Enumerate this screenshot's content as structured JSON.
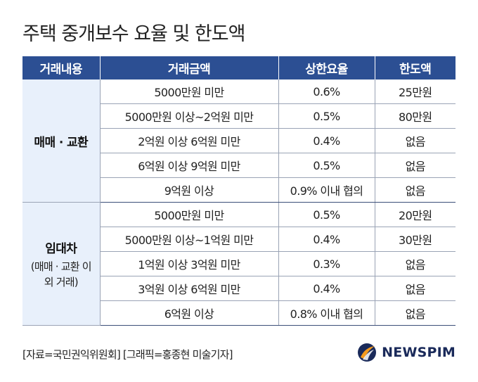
{
  "title": "주택 중개보수 요율 및 한도액",
  "table": {
    "headers": [
      "거래내용",
      "거래금액",
      "상한요율",
      "한도액"
    ],
    "groups": [
      {
        "category": "매매 · 교환",
        "category_sub": "",
        "rows": [
          {
            "amount": "5000만원 미만",
            "rate": "0.6%",
            "limit": "25만원"
          },
          {
            "amount": "5000만원 이상~2억원 미만",
            "rate": "0.5%",
            "limit": "80만원"
          },
          {
            "amount": "2억원 이상 6억원 미만",
            "rate": "0.4%",
            "limit": "없음"
          },
          {
            "amount": "6억원 이상 9억원 미만",
            "rate": "0.5%",
            "limit": "없음"
          },
          {
            "amount": "9억원 이상",
            "rate": "0.9% 이내 협의",
            "limit": "없음"
          }
        ]
      },
      {
        "category": "임대차",
        "category_sub": "(매매 · 교환 이외 거래)",
        "rows": [
          {
            "amount": "5000만원 미만",
            "rate": "0.5%",
            "limit": "20만원"
          },
          {
            "amount": "5000만원 이상~1억원 미만",
            "rate": "0.4%",
            "limit": "30만원"
          },
          {
            "amount": "1억원 이상 3억원 미만",
            "rate": "0.3%",
            "limit": "없음"
          },
          {
            "amount": "3억원 이상 6억원 미만",
            "rate": "0.4%",
            "limit": "없음"
          },
          {
            "amount": "6억원 이상",
            "rate": "0.8% 이내 협의",
            "limit": "없음"
          }
        ]
      }
    ]
  },
  "footer": "[자료=국민권익위원회] [그래픽=홍종현 미술기자]",
  "logo": {
    "text": "NEWSPIM",
    "icon": "newspim-swoosh-icon",
    "colors": {
      "orange": "#f39a1e",
      "navy": "#1a2a5a"
    }
  },
  "colors": {
    "header_bg": "#2c4f93",
    "category_bg": "#e8f0fb"
  }
}
